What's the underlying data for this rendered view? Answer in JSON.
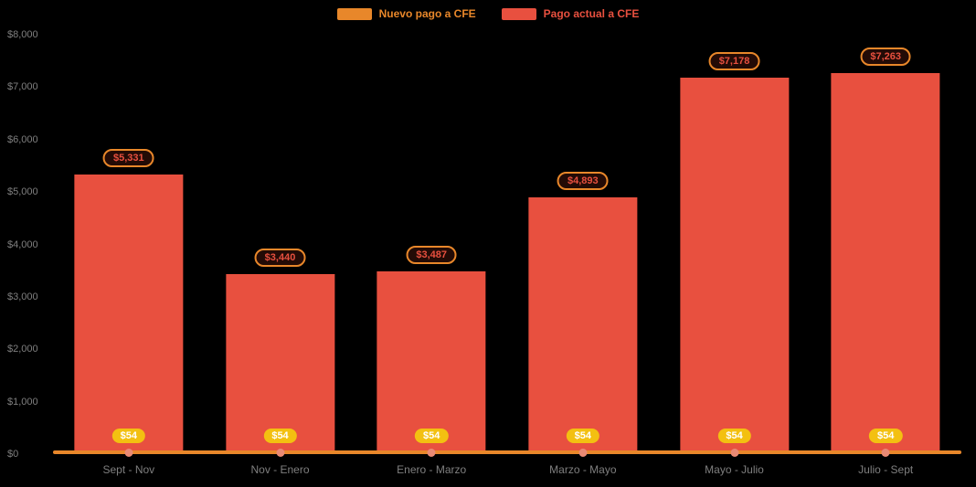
{
  "colors": {
    "background": "#000000",
    "bar": "#e8503f",
    "line": "#e8872a",
    "marker": "#e98a74",
    "axis_text": "#7f7f7f",
    "bar_pill_bg": "#230b06",
    "bar_pill_text": "#e8503f",
    "small_pill_bg": "#f3c011",
    "small_pill_text": "#ffffff"
  },
  "chart_data": {
    "type": "bar",
    "title": "",
    "categories": [
      "Sept - Nov",
      "Nov - Enero",
      "Enero - Marzo",
      "Marzo - Mayo",
      "Mayo - Julio",
      "Julio - Sept"
    ],
    "series": [
      {
        "name": "Nuevo pago a CFE",
        "type": "line",
        "color": "#e8872a",
        "values": [
          54,
          54,
          54,
          54,
          54,
          54
        ],
        "labels": [
          "$54",
          "$54",
          "$54",
          "$54",
          "$54",
          "$54"
        ]
      },
      {
        "name": "Pago actual a CFE",
        "type": "bar",
        "color": "#e8503f",
        "values": [
          5331,
          3440,
          3487,
          4893,
          7178,
          7263
        ],
        "labels": [
          "$5,331",
          "$3,440",
          "$3,487",
          "$4,893",
          "$7,178",
          "$7,263"
        ]
      }
    ],
    "xlabel": "",
    "ylabel": "",
    "ylim": [
      0,
      8000
    ],
    "yticks": [
      "$0",
      "$1,000",
      "$2,000",
      "$3,000",
      "$4,000",
      "$5,000",
      "$6,000",
      "$7,000",
      "$8,000"
    ],
    "legend_position": "top",
    "grid": false
  }
}
